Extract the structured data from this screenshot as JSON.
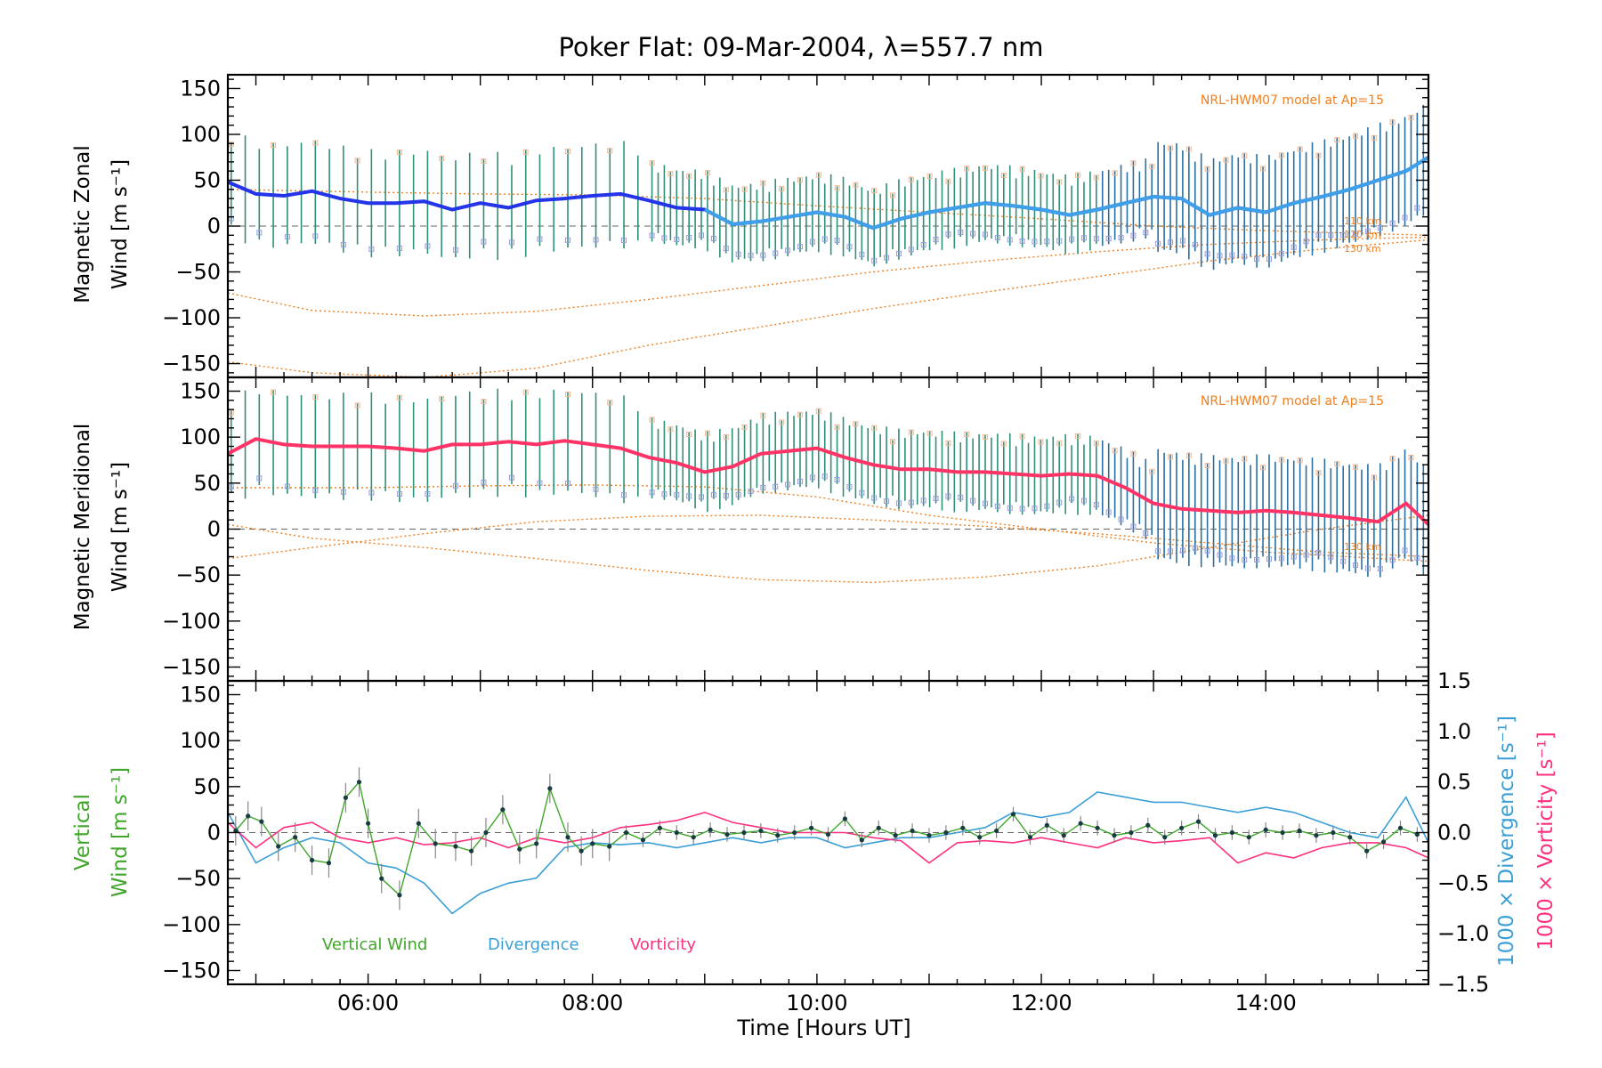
{
  "chart_data": [
    {
      "type": "line",
      "panel": "zonal",
      "title": "Poker Flat: 09-Mar-2004, λ=557.7 nm",
      "ylabel_line1": "Magnetic Zonal",
      "ylabel_line2": "Wind [m s⁻¹]",
      "ylim": [
        -165,
        165
      ],
      "yticks": [
        "150",
        "100",
        "50",
        "0",
        "−50",
        "−100",
        "−150"
      ],
      "ytick_values": [
        150,
        100,
        50,
        0,
        -50,
        -100,
        -150
      ],
      "model_label": "NRL-HWM07 model at Ap=15",
      "altitude_labels": [
        "110 km",
        "120 km",
        "130 km"
      ],
      "mean_series": {
        "name": "mean zonal wind",
        "x": [
          4.75,
          5.0,
          5.25,
          5.5,
          5.75,
          6.0,
          6.25,
          6.5,
          6.75,
          7.0,
          7.25,
          7.5,
          7.75,
          8.0,
          8.25,
          8.5,
          8.75,
          9.0,
          9.25,
          9.5,
          9.75,
          10.0,
          10.25,
          10.5,
          10.75,
          11.0,
          11.25,
          11.5,
          11.75,
          12.0,
          12.25,
          12.5,
          12.75,
          13.0,
          13.25,
          13.5,
          13.75,
          14.0,
          14.25,
          14.5,
          14.75,
          15.0,
          15.25,
          15.45
        ],
        "values": [
          48,
          35,
          33,
          38,
          30,
          25,
          25,
          27,
          18,
          25,
          20,
          28,
          30,
          33,
          35,
          28,
          20,
          18,
          2,
          5,
          10,
          15,
          10,
          -2,
          8,
          15,
          20,
          25,
          22,
          18,
          12,
          18,
          25,
          32,
          30,
          12,
          20,
          15,
          25,
          32,
          40,
          50,
          60,
          75
        ]
      },
      "model_curves": [
        {
          "name": "110 km",
          "x": [
            4.75,
            6.0,
            7.0,
            8.0,
            9.0,
            10.0,
            11.0,
            12.0,
            13.0,
            14.0,
            15.45
          ],
          "values": [
            40,
            37,
            35,
            34,
            30,
            22,
            15,
            8,
            0,
            -5,
            -10
          ]
        },
        {
          "name": "120 km",
          "x": [
            4.75,
            5.5,
            6.5,
            7.5,
            8.5,
            9.5,
            10.5,
            11.5,
            12.5,
            13.5,
            14.5,
            15.45
          ],
          "values": [
            -73,
            -92,
            -98,
            -93,
            -80,
            -65,
            -50,
            -38,
            -28,
            -20,
            -15,
            -12
          ]
        },
        {
          "name": "130 km",
          "x": [
            4.75,
            5.5,
            6.5,
            7.5,
            8.5,
            9.5,
            10.5,
            11.5,
            12.5,
            13.5,
            14.5,
            15.45
          ],
          "values": [
            -148,
            -160,
            -165,
            -155,
            -130,
            -110,
            -90,
            -72,
            -55,
            -38,
            -25,
            -15
          ]
        }
      ]
    },
    {
      "type": "line",
      "panel": "meridional",
      "ylabel_line1": "Magnetic Meridional",
      "ylabel_line2": "Wind [m s⁻¹]",
      "ylim": [
        -165,
        165
      ],
      "yticks": [
        "150",
        "100",
        "50",
        "0",
        "−50",
        "−100",
        "−150"
      ],
      "ytick_values": [
        150,
        100,
        50,
        0,
        -50,
        -100,
        -150
      ],
      "model_label": "NRL-HWM07 model at Ap=15",
      "altitude_labels": [
        "130 km"
      ],
      "mean_series": {
        "name": "mean meridional wind",
        "x": [
          4.75,
          5.0,
          5.25,
          5.5,
          5.75,
          6.0,
          6.25,
          6.5,
          6.75,
          7.0,
          7.25,
          7.5,
          7.75,
          8.0,
          8.25,
          8.5,
          8.75,
          9.0,
          9.25,
          9.5,
          9.75,
          10.0,
          10.25,
          10.5,
          10.75,
          11.0,
          11.25,
          11.5,
          11.75,
          12.0,
          12.25,
          12.5,
          12.75,
          13.0,
          13.25,
          13.5,
          13.75,
          14.0,
          14.25,
          14.5,
          14.75,
          15.0,
          15.25,
          15.45
        ],
        "values": [
          82,
          98,
          92,
          90,
          90,
          90,
          88,
          85,
          92,
          92,
          95,
          92,
          96,
          92,
          88,
          78,
          72,
          62,
          68,
          82,
          85,
          88,
          78,
          70,
          65,
          65,
          62,
          62,
          60,
          58,
          60,
          58,
          45,
          28,
          22,
          20,
          18,
          20,
          18,
          15,
          12,
          8,
          28,
          5
        ]
      },
      "model_curves": [
        {
          "name": "110 km",
          "x": [
            4.75,
            6.0,
            7.0,
            8.0,
            9.0,
            10.0,
            11.0,
            12.0,
            13.0,
            14.0,
            15.45
          ],
          "values": [
            45,
            45,
            47,
            48,
            46,
            35,
            15,
            0,
            -15,
            -25,
            -35
          ]
        },
        {
          "name": "120 km",
          "x": [
            4.75,
            5.5,
            6.5,
            7.5,
            8.5,
            9.5,
            10.5,
            11.5,
            12.5,
            13.5,
            14.5,
            15.45
          ],
          "values": [
            -32,
            -20,
            -5,
            8,
            14,
            15,
            10,
            3,
            -5,
            -15,
            -25,
            -30
          ]
        },
        {
          "name": "130 km",
          "x": [
            4.75,
            5.5,
            6.5,
            7.5,
            8.5,
            9.5,
            10.5,
            11.5,
            12.5,
            13.5,
            14.5,
            15.45
          ],
          "values": [
            5,
            -10,
            -20,
            -32,
            -45,
            -55,
            -58,
            -52,
            -40,
            -20,
            0,
            15
          ]
        }
      ]
    },
    {
      "type": "line",
      "panel": "vertical",
      "xlabel": "Time [Hours UT]",
      "ylabel_line1": "Vertical",
      "ylabel_line2": "Wind [m s⁻¹]",
      "ylim": [
        -165,
        165
      ],
      "yticks": [
        "150",
        "100",
        "50",
        "0",
        "−50",
        "−100",
        "−150"
      ],
      "ytick_values": [
        150,
        100,
        50,
        0,
        -50,
        -100,
        -150
      ],
      "xlim": [
        4.75,
        15.45
      ],
      "xticks": [
        "06:00",
        "08:00",
        "10:00",
        "12:00",
        "14:00"
      ],
      "xtick_values": [
        6,
        8,
        10,
        12,
        14
      ],
      "right_ylim": [
        -1.5,
        1.5
      ],
      "right_yticks": [
        "1.5",
        "1.0",
        "0.5",
        "0.0",
        "−0.5",
        "−1.0",
        "−1.5"
      ],
      "right_ytick_values": [
        1.5,
        1.0,
        0.5,
        0.0,
        -0.5,
        -1.0,
        -1.5
      ],
      "right_ylabel_1": "1000 × Divergence [s⁻¹]",
      "right_ylabel_2": "1000 × Vorticity [s⁻¹]",
      "legend": [
        "Vertical Wind",
        "Divergence",
        "Vorticity"
      ],
      "colors": {
        "vertical": "#3fa62a",
        "divergence": "#3a9fd6",
        "vorticity": "#ff2f7f",
        "zonal": "#2434e8",
        "meridional": "#ff3366",
        "model": "#f07f1e"
      },
      "series": [
        {
          "name": "Vertical Wind",
          "axis": "left",
          "x": [
            4.82,
            4.93,
            5.05,
            5.2,
            5.35,
            5.5,
            5.65,
            5.8,
            5.92,
            6.0,
            6.12,
            6.28,
            6.45,
            6.6,
            6.78,
            6.92,
            7.05,
            7.2,
            7.35,
            7.5,
            7.62,
            7.78,
            7.9,
            8.0,
            8.15,
            8.3,
            8.45,
            8.6,
            8.75,
            8.9,
            9.05,
            9.2,
            9.35,
            9.5,
            9.65,
            9.8,
            9.95,
            10.1,
            10.25,
            10.4,
            10.55,
            10.7,
            10.85,
            11.0,
            11.15,
            11.3,
            11.45,
            11.6,
            11.75,
            11.9,
            12.05,
            12.2,
            12.35,
            12.5,
            12.65,
            12.8,
            12.95,
            13.1,
            13.25,
            13.4,
            13.55,
            13.7,
            13.85,
            14.0,
            14.15,
            14.3,
            14.45,
            14.6,
            14.75,
            14.9,
            15.05,
            15.2,
            15.35
          ],
          "values": [
            2,
            18,
            12,
            -15,
            -5,
            -30,
            -33,
            38,
            55,
            10,
            -50,
            -68,
            10,
            -12,
            -15,
            -20,
            0,
            25,
            -18,
            -12,
            48,
            -5,
            -20,
            -12,
            -15,
            0,
            -8,
            5,
            0,
            -5,
            3,
            -2,
            0,
            2,
            -3,
            0,
            5,
            -2,
            15,
            -8,
            5,
            -3,
            2,
            -3,
            0,
            5,
            -5,
            2,
            20,
            -5,
            8,
            -3,
            10,
            5,
            -3,
            0,
            8,
            -5,
            5,
            12,
            -3,
            0,
            -5,
            3,
            0,
            2,
            -3,
            0,
            -5,
            -20,
            -10,
            5,
            -2
          ]
        },
        {
          "name": "Divergence",
          "axis": "right",
          "x": [
            4.75,
            5.0,
            5.25,
            5.5,
            5.75,
            6.0,
            6.25,
            6.5,
            6.75,
            7.0,
            7.25,
            7.5,
            7.75,
            8.0,
            8.25,
            8.5,
            8.75,
            9.0,
            9.25,
            9.5,
            9.75,
            10.0,
            10.25,
            10.5,
            10.75,
            11.0,
            11.25,
            11.5,
            11.75,
            12.0,
            12.25,
            12.5,
            12.75,
            13.0,
            13.25,
            13.5,
            13.75,
            14.0,
            14.25,
            14.5,
            14.75,
            15.0,
            15.25,
            15.45
          ],
          "values": [
            0.2,
            -0.3,
            -0.15,
            -0.05,
            -0.1,
            -0.3,
            -0.35,
            -0.5,
            -0.8,
            -0.6,
            -0.5,
            -0.45,
            -0.15,
            -0.1,
            -0.12,
            -0.1,
            -0.15,
            -0.1,
            -0.05,
            -0.1,
            -0.05,
            -0.05,
            -0.15,
            -0.1,
            -0.05,
            -0.05,
            0.0,
            0.05,
            0.2,
            0.15,
            0.2,
            0.4,
            0.35,
            0.3,
            0.3,
            0.25,
            0.2,
            0.25,
            0.2,
            0.1,
            0.0,
            -0.05,
            0.35,
            -0.1
          ]
        },
        {
          "name": "Vorticity",
          "axis": "right",
          "x": [
            4.75,
            5.0,
            5.25,
            5.5,
            5.75,
            6.0,
            6.25,
            6.5,
            6.75,
            7.0,
            7.25,
            7.5,
            7.75,
            8.0,
            8.25,
            8.5,
            8.75,
            9.0,
            9.25,
            9.5,
            9.75,
            10.0,
            10.25,
            10.5,
            10.75,
            11.0,
            11.25,
            11.5,
            11.75,
            12.0,
            12.25,
            12.5,
            12.75,
            13.0,
            13.25,
            13.5,
            13.75,
            14.0,
            14.25,
            14.5,
            14.75,
            15.0,
            15.25,
            15.45
          ],
          "values": [
            0.1,
            -0.15,
            0.05,
            0.1,
            -0.05,
            -0.1,
            -0.05,
            -0.12,
            -0.1,
            -0.05,
            -0.15,
            -0.05,
            -0.1,
            -0.05,
            0.05,
            0.08,
            0.12,
            0.2,
            0.1,
            0.05,
            0.0,
            0.0,
            0.0,
            -0.05,
            -0.08,
            -0.3,
            -0.1,
            -0.08,
            -0.1,
            -0.05,
            -0.1,
            -0.15,
            -0.05,
            -0.1,
            -0.08,
            -0.05,
            -0.3,
            -0.2,
            -0.25,
            -0.15,
            -0.1,
            -0.1,
            -0.15,
            -0.25
          ]
        }
      ]
    }
  ]
}
